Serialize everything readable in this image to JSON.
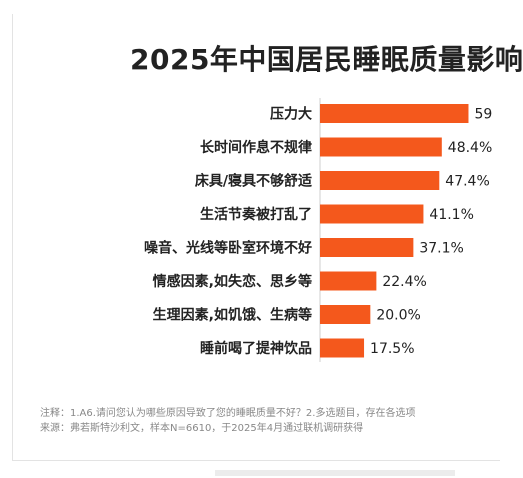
{
  "chart_data": {
    "type": "bar",
    "orientation": "horizontal",
    "title": "2025年中国居民睡眠质量影响",
    "categories": [
      "压力大",
      "长时间作息不规律",
      "床具/寝具不够舒适",
      "生活节奏被打乱了",
      "噪音、光线等卧室环境不好",
      "情感因素,如失恋、思乡等",
      "生理因素,如饥饿、生病等",
      "睡前喝了提神饮品"
    ],
    "values": [
      59,
      48.4,
      47.4,
      41.1,
      37.1,
      22.4,
      20.0,
      17.5
    ],
    "value_labels": [
      "59",
      "48.4%",
      "47.4%",
      "41.1%",
      "37.1%",
      "22.4%",
      "20.0%",
      "17.5%"
    ],
    "xlim": [
      0,
      60
    ],
    "grid": false,
    "bar_color": "#f4581c"
  },
  "notes": {
    "line1": "注释：1.A6.请问您认为哪些原因导致了您的睡眠质量不好？2.多选题目，存在各选项",
    "line2": "来源：弗若斯特沙利文，样本N=6610，于2025年4月通过联机调研获得"
  }
}
